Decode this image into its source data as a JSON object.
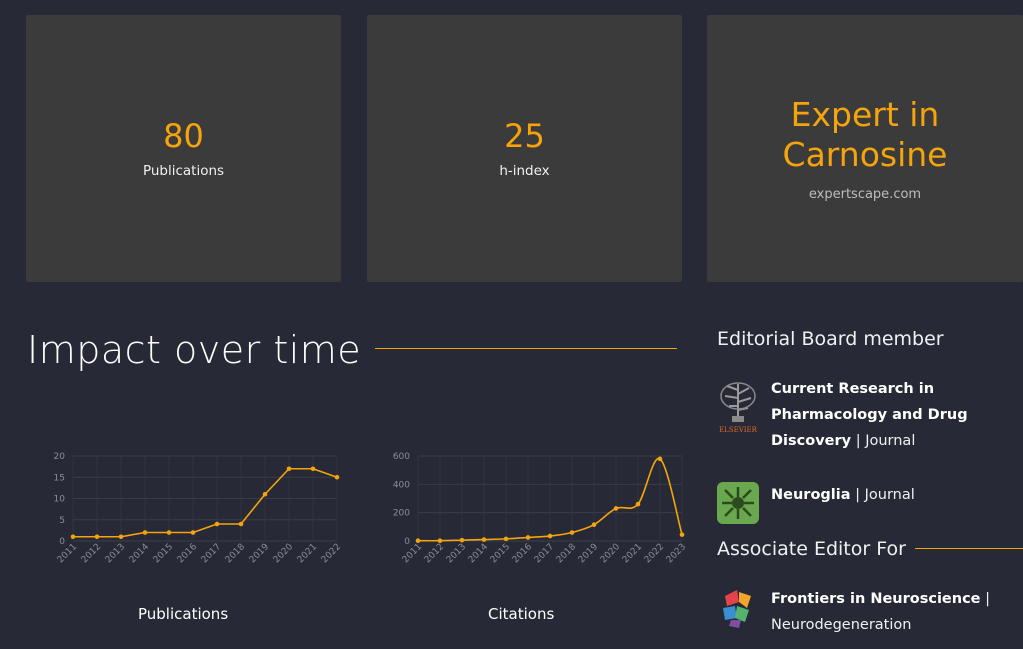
{
  "stats": [
    {
      "value": "80",
      "label": "Publications"
    },
    {
      "value": "25",
      "label": "h-index"
    }
  ],
  "expert": {
    "title": "Expert in Carnosine",
    "source": "expertscape.com"
  },
  "impact": {
    "title": "Impact over time"
  },
  "charts": {
    "publications_caption": "Publications",
    "citations_caption": "Citations"
  },
  "chart_data": [
    {
      "type": "line",
      "title": "Publications",
      "x": [
        "2011",
        "2012",
        "2013",
        "2014",
        "2015",
        "2016",
        "2017",
        "2018",
        "2019",
        "2020",
        "2021",
        "2022"
      ],
      "values": [
        1,
        1,
        1,
        2,
        2,
        2,
        4,
        4,
        11,
        17,
        17,
        15
      ],
      "yticks": [
        0,
        5,
        10,
        15,
        20
      ],
      "ylim": [
        0,
        20
      ],
      "color": "#f5a40c",
      "grid": true
    },
    {
      "type": "line",
      "title": "Citations",
      "x": [
        "2011",
        "2012",
        "2013",
        "2014",
        "2015",
        "2016",
        "2017",
        "2018",
        "2019",
        "2020",
        "2021",
        "2022",
        "2023"
      ],
      "values": [
        2,
        2,
        6,
        10,
        15,
        25,
        35,
        60,
        115,
        230,
        260,
        580,
        45
      ],
      "yticks": [
        0,
        200,
        400,
        600
      ],
      "ylim": [
        0,
        600
      ],
      "color": "#f5a40c",
      "grid": true
    }
  ],
  "editorial": {
    "heading": "Editorial Board member",
    "journals": [
      {
        "name": "Current Research in Pharmacology and Drug Discovery",
        "type": "| Journal",
        "logo": "elsevier-logo",
        "logo_text": "ELSEVIER"
      },
      {
        "name": "Neuroglia",
        "type": "| Journal",
        "logo": "neuroglia-logo"
      }
    ]
  },
  "associate": {
    "heading": "Associate Editor For",
    "journals": [
      {
        "name": "Frontiers in Neuroscience",
        "type": "|",
        "section": "Neurodegeneration",
        "logo": "frontiers-logo"
      }
    ]
  },
  "colors": {
    "accent": "#f5a40c",
    "background": "#272a36",
    "card": "#3b3b3b"
  }
}
